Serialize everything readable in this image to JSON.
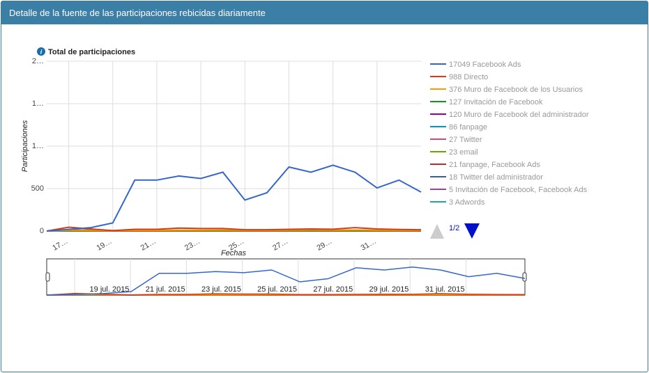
{
  "panel_title": "Detalle de la fuente de las participaciones rebicidas diariamente",
  "legend_page": "1/2",
  "navigator_labels": [
    "19 jul. 2015",
    "21 jul. 2015",
    "23 jul. 2015",
    "25 jul. 2015",
    "27 jul. 2015",
    "29 jul. 2015",
    "31 jul. 2015"
  ],
  "chart_data": {
    "type": "line",
    "title": "Total de participaciones",
    "x_label": "Fechas",
    "y_label": "Participaciones",
    "categories": [
      null,
      "17…",
      null,
      "19…",
      null,
      "21…",
      null,
      "23…",
      null,
      "25…",
      null,
      "27…",
      null,
      "29…",
      null,
      "31…",
      null,
      null
    ],
    "ylim": [
      0,
      2000
    ],
    "yticks": [
      0,
      500,
      {
        "value": 1000,
        "label": "1…"
      },
      {
        "value": 1500,
        "label": "1…"
      },
      {
        "value": 2000,
        "label": "2…"
      }
    ],
    "grid": true,
    "series": [
      {
        "name": "17049 Facebook Ads",
        "color": "#3366cc",
        "values": [
          0,
          20,
          40,
          95,
          600,
          600,
          648,
          619,
          693,
          365,
          451,
          754,
          693,
          775,
          693,
          508,
          600,
          459
        ]
      },
      {
        "name": "988 Directo",
        "color": "#dc3912",
        "values": [
          0,
          45,
          25,
          5,
          20,
          20,
          35,
          30,
          30,
          15,
          15,
          20,
          25,
          22,
          40,
          25,
          18,
          15
        ]
      },
      {
        "name": "376 Muro de Facebook de los Usuarios",
        "color": "#ff9900",
        "values": [
          0,
          10,
          10,
          5,
          8,
          8,
          10,
          10,
          12,
          8,
          8,
          10,
          12,
          10,
          12,
          10,
          8,
          8
        ]
      },
      {
        "name": "127 Invitación de Facebook",
        "color": "#109618",
        "values": [
          0,
          3,
          4,
          3,
          4,
          4,
          5,
          5,
          5,
          4,
          4,
          5,
          5,
          6,
          5,
          4,
          4,
          3
        ]
      },
      {
        "name": "120 Muro de Facebook del administrador",
        "color": "#990099",
        "values": [
          0,
          12,
          12,
          3,
          3,
          3,
          4,
          4,
          4,
          3,
          3,
          4,
          4,
          4,
          4,
          3,
          3,
          3
        ]
      },
      {
        "name": "86 fanpage",
        "color": "#0099c6",
        "values": [
          0,
          2,
          3,
          2,
          3,
          3,
          4,
          4,
          4,
          3,
          3,
          4,
          4,
          4,
          3,
          3,
          3,
          2
        ]
      },
      {
        "name": "27 Twitter",
        "color": "#dd4477",
        "values": [
          0,
          1,
          1,
          1,
          1,
          1,
          2,
          2,
          2,
          1,
          1,
          2,
          2,
          2,
          2,
          1,
          1,
          1
        ]
      },
      {
        "name": "23 email",
        "color": "#66aa00",
        "values": [
          0,
          1,
          1,
          1,
          1,
          1,
          1,
          2,
          2,
          1,
          1,
          2,
          2,
          1,
          1,
          1,
          1,
          1
        ]
      },
      {
        "name": "21 fanpage, Facebook Ads",
        "color": "#b82e2e",
        "values": [
          0,
          1,
          1,
          1,
          1,
          1,
          1,
          1,
          2,
          1,
          1,
          1,
          2,
          1,
          1,
          1,
          1,
          1
        ]
      },
      {
        "name": "18 Twitter del administrador",
        "color": "#316395",
        "values": [
          0,
          1,
          1,
          1,
          1,
          1,
          1,
          1,
          1,
          1,
          1,
          1,
          1,
          1,
          1,
          1,
          1,
          1
        ]
      },
      {
        "name": "5 Invitación de Facebook, Facebook Ads",
        "color": "#994499",
        "values": [
          0,
          0,
          0,
          0,
          1,
          0,
          0,
          1,
          0,
          0,
          1,
          0,
          0,
          1,
          0,
          0,
          1,
          0
        ]
      },
      {
        "name": "3 Adwords",
        "color": "#22aa99",
        "values": [
          0,
          0,
          0,
          0,
          0,
          1,
          0,
          0,
          0,
          0,
          1,
          0,
          0,
          0,
          1,
          0,
          0,
          0
        ]
      }
    ]
  }
}
